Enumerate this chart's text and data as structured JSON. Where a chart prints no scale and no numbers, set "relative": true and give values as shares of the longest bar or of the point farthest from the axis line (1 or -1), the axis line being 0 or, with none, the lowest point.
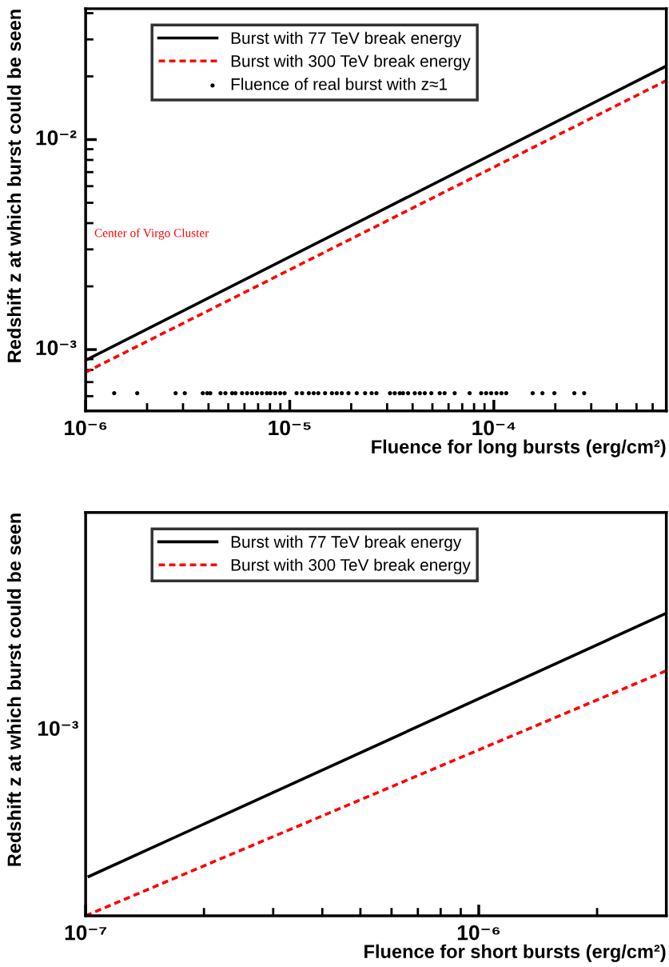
{
  "chart_data": [
    {
      "type": "line",
      "xlabel": "Fluence for long bursts (erg/cm²)",
      "ylabel": "Redshift z at which burst could be seen",
      "log": "xy",
      "legend": "top left",
      "xlim": [
        1e-06,
        0.0007
      ],
      "xticks": [
        {
          "value": 1e-06,
          "label": "10⁻⁶"
        },
        {
          "value": 1e-05,
          "label": "10⁻⁵"
        },
        {
          "value": 0.0001,
          "label": "10⁻⁴"
        }
      ],
      "ylim": [
        0.00051,
        0.042
      ],
      "yticks": [
        {
          "value": 0.001,
          "label": "10⁻³"
        },
        {
          "value": 0.01,
          "label": "10⁻²"
        }
      ],
      "annotations": [
        "Center of Virgo Cluster"
      ],
      "series": [
        {
          "name": "Burst with 77 TeV break energy",
          "color": "#000000",
          "line_style": "solid",
          "x": [
            1e-06,
            0.0007
          ],
          "values": [
            0.00089,
            0.0224
          ]
        },
        {
          "name": "Burst with 300 TeV break energy",
          "color": "#ff0000",
          "line_style": "dashed",
          "x": [
            1e-06,
            0.0007
          ],
          "values": [
            0.00078,
            0.0191
          ]
        },
        {
          "name": "Fluence of real burst with z≈1",
          "color": "#000000",
          "type": "scatter",
          "marker": "circle",
          "x": [
            1.38e-06,
            1.79e-06,
            2.76e-06,
            3.06e-06,
            3.75e-06,
            3.94e-06,
            4.08e-06,
            4.58e-06,
            4.84e-06,
            5.22e-06,
            5.42e-06,
            5.84e-06,
            6.18e-06,
            6.53e-06,
            6.91e-06,
            7.31e-06,
            7.73e-06,
            8.03e-06,
            8.49e-06,
            8.98e-06,
            9.44e-06,
            1.08e-05,
            1.15e-05,
            1.24e-05,
            1.31e-05,
            1.38e-05,
            1.49e-05,
            1.61e-05,
            1.7e-05,
            1.8e-05,
            1.94e-05,
            2.13e-05,
            2.34e-05,
            2.52e-05,
            2.66e-05,
            3.1e-05,
            3.27e-05,
            3.46e-05,
            3.59e-05,
            3.8e-05,
            4.1e-05,
            4.34e-05,
            4.59e-05,
            4.94e-05,
            5.43e-05,
            5.74e-05,
            6.43e-05,
            7.61e-05,
            8.67e-05,
            9.17e-05,
            9.7e-05,
            0.000103,
            0.000109,
            0.000115,
            0.000155,
            0.000173,
            0.000198,
            0.000248,
            0.000277
          ],
          "values": [
            0.00062,
            0.00062,
            0.00062,
            0.00062,
            0.00062,
            0.00062,
            0.00062,
            0.00062,
            0.00062,
            0.00062,
            0.00062,
            0.00062,
            0.00062,
            0.00062,
            0.00062,
            0.00062,
            0.00062,
            0.00062,
            0.00062,
            0.00062,
            0.00062,
            0.00062,
            0.00062,
            0.00062,
            0.00062,
            0.00062,
            0.00062,
            0.00062,
            0.00062,
            0.00062,
            0.00062,
            0.00062,
            0.00062,
            0.00062,
            0.00062,
            0.00062,
            0.00062,
            0.00062,
            0.00062,
            0.00062,
            0.00062,
            0.00062,
            0.00062,
            0.00062,
            0.00062,
            0.00062,
            0.00062,
            0.00062,
            0.00062,
            0.00062,
            0.00062,
            0.00062,
            0.00062,
            0.00062,
            0.00062,
            0.00062,
            0.00062,
            0.00062,
            0.00062
          ]
        }
      ]
    },
    {
      "type": "line",
      "xlabel": "Fluence for short bursts (erg/cm²)",
      "ylabel": "Redshift z at which burst could be seen",
      "log": "x",
      "legend": "top left",
      "relative": true,
      "xlim": [
        1e-07,
        3e-06
      ],
      "xticks": [
        {
          "value": 1e-07,
          "label": "10⁻⁷"
        },
        {
          "value": 1e-06,
          "label": "10⁻⁶"
        }
      ],
      "annotations": [
        "10⁻³"
      ],
      "series": [
        {
          "name": "Burst with 77 TeV break energy",
          "color": "#000000",
          "line_style": "solid",
          "x": [
            1.02e-07,
            3e-06
          ],
          "values": [
            0.13,
            1
          ]
        },
        {
          "name": "Burst with 300 TeV break energy",
          "color": "#ff0000",
          "line_style": "dashed",
          "x": [
            1e-07,
            3e-06
          ],
          "values": [
            0,
            0.81
          ]
        }
      ]
    }
  ]
}
